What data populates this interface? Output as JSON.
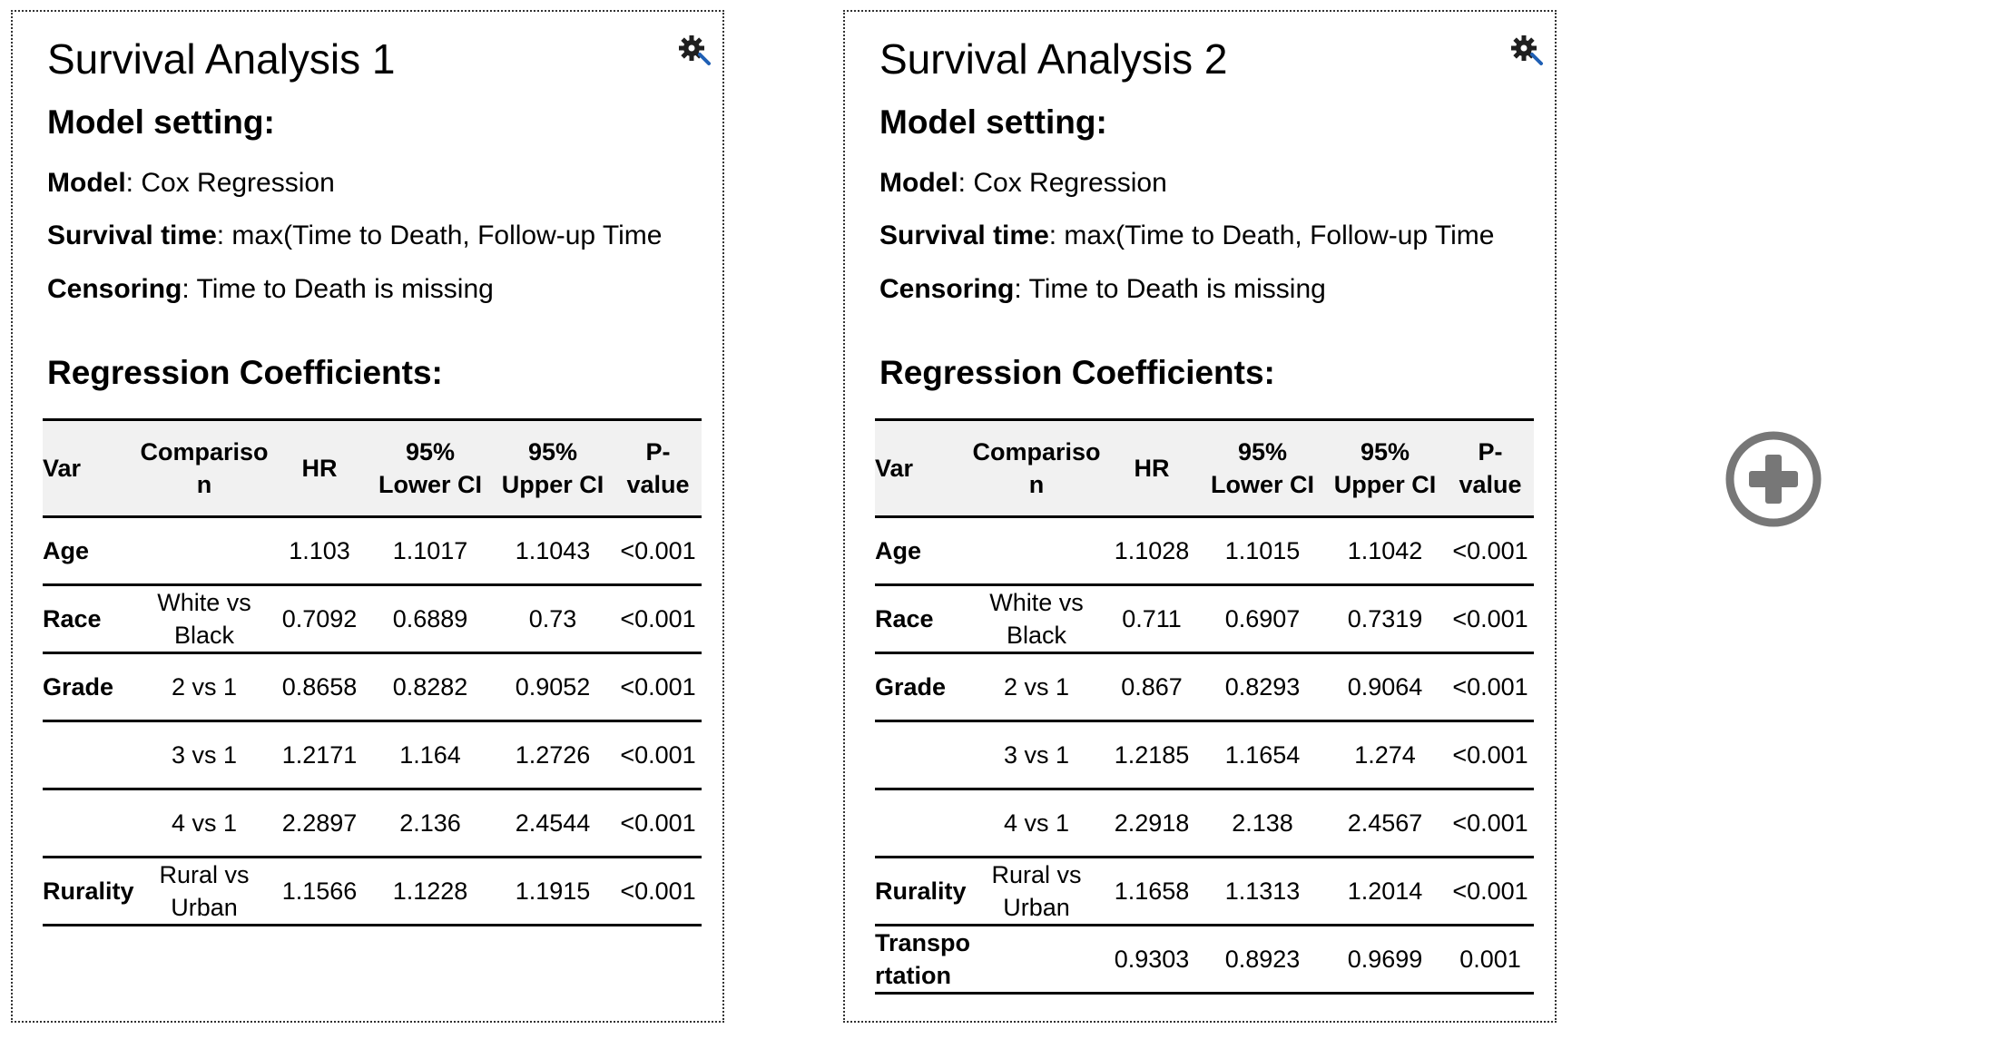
{
  "colors": {
    "gear_dark": "#1f1f1f",
    "gear_accent": "#1f5fb4",
    "add_icon": "#777777",
    "header_bg": "#f1f1f1"
  },
  "cards": [
    {
      "title": "Survival Analysis 1",
      "model_heading": "Model setting:",
      "model_label": "Model",
      "model_value": ": Cox Regression",
      "time_label": "Survival time",
      "time_value": ": max(Time to Death, Follow-up Time",
      "censor_label": "Censoring",
      "censor_value": ": Time to Death is missing",
      "coef_heading": "Regression Coefficients:",
      "columns": [
        "Var",
        "Compariso n",
        "HR",
        "95% Lower CI",
        "95% Upper CI",
        "P- value"
      ],
      "rows": [
        [
          "Age",
          "",
          "1.103",
          "1.1017",
          "1.1043",
          "<0.001"
        ],
        [
          "Race",
          "White vs Black",
          "0.7092",
          "0.6889",
          "0.73",
          "<0.001"
        ],
        [
          "Grade",
          "2 vs 1",
          "0.8658",
          "0.8282",
          "0.9052",
          "<0.001"
        ],
        [
          "",
          "3 vs 1",
          "1.2171",
          "1.164",
          "1.2726",
          "<0.001"
        ],
        [
          "",
          "4 vs 1",
          "2.2897",
          "2.136",
          "2.4544",
          "<0.001"
        ],
        [
          "Rurality",
          "Rural vs Urban",
          "1.1566",
          "1.1228",
          "1.1915",
          "<0.001"
        ]
      ]
    },
    {
      "title": "Survival Analysis 2",
      "model_heading": "Model setting:",
      "model_label": "Model",
      "model_value": ": Cox Regression",
      "time_label": "Survival time",
      "time_value": ": max(Time to Death, Follow-up Time",
      "censor_label": "Censoring",
      "censor_value": ": Time to Death is missing",
      "coef_heading": "Regression Coefficients:",
      "columns": [
        "Var",
        "Compariso n",
        "HR",
        "95% Lower CI",
        "95% Upper CI",
        "P-value"
      ],
      "rows": [
        [
          "Age",
          "",
          "1.1028",
          "1.1015",
          "1.1042",
          "<0.001"
        ],
        [
          "Race",
          "White vs Black",
          "0.711",
          "0.6907",
          "0.7319",
          "<0.001"
        ],
        [
          "Grade",
          "2 vs 1",
          "0.867",
          "0.8293",
          "0.9064",
          "<0.001"
        ],
        [
          "",
          "3 vs 1",
          "1.2185",
          "1.1654",
          "1.274",
          "<0.001"
        ],
        [
          "",
          "4 vs 1",
          "2.2918",
          "2.138",
          "2.4567",
          "<0.001"
        ],
        [
          "Rurality",
          "Rural vs Urban",
          "1.1658",
          "1.1313",
          "1.2014",
          "<0.001"
        ],
        [
          "Transpo rtation",
          "",
          "0.9303",
          "0.8923",
          "0.9699",
          "0.001"
        ]
      ]
    }
  ],
  "add_button": {
    "icon": "circle-plus-icon"
  },
  "card_icon": "gear-icon"
}
